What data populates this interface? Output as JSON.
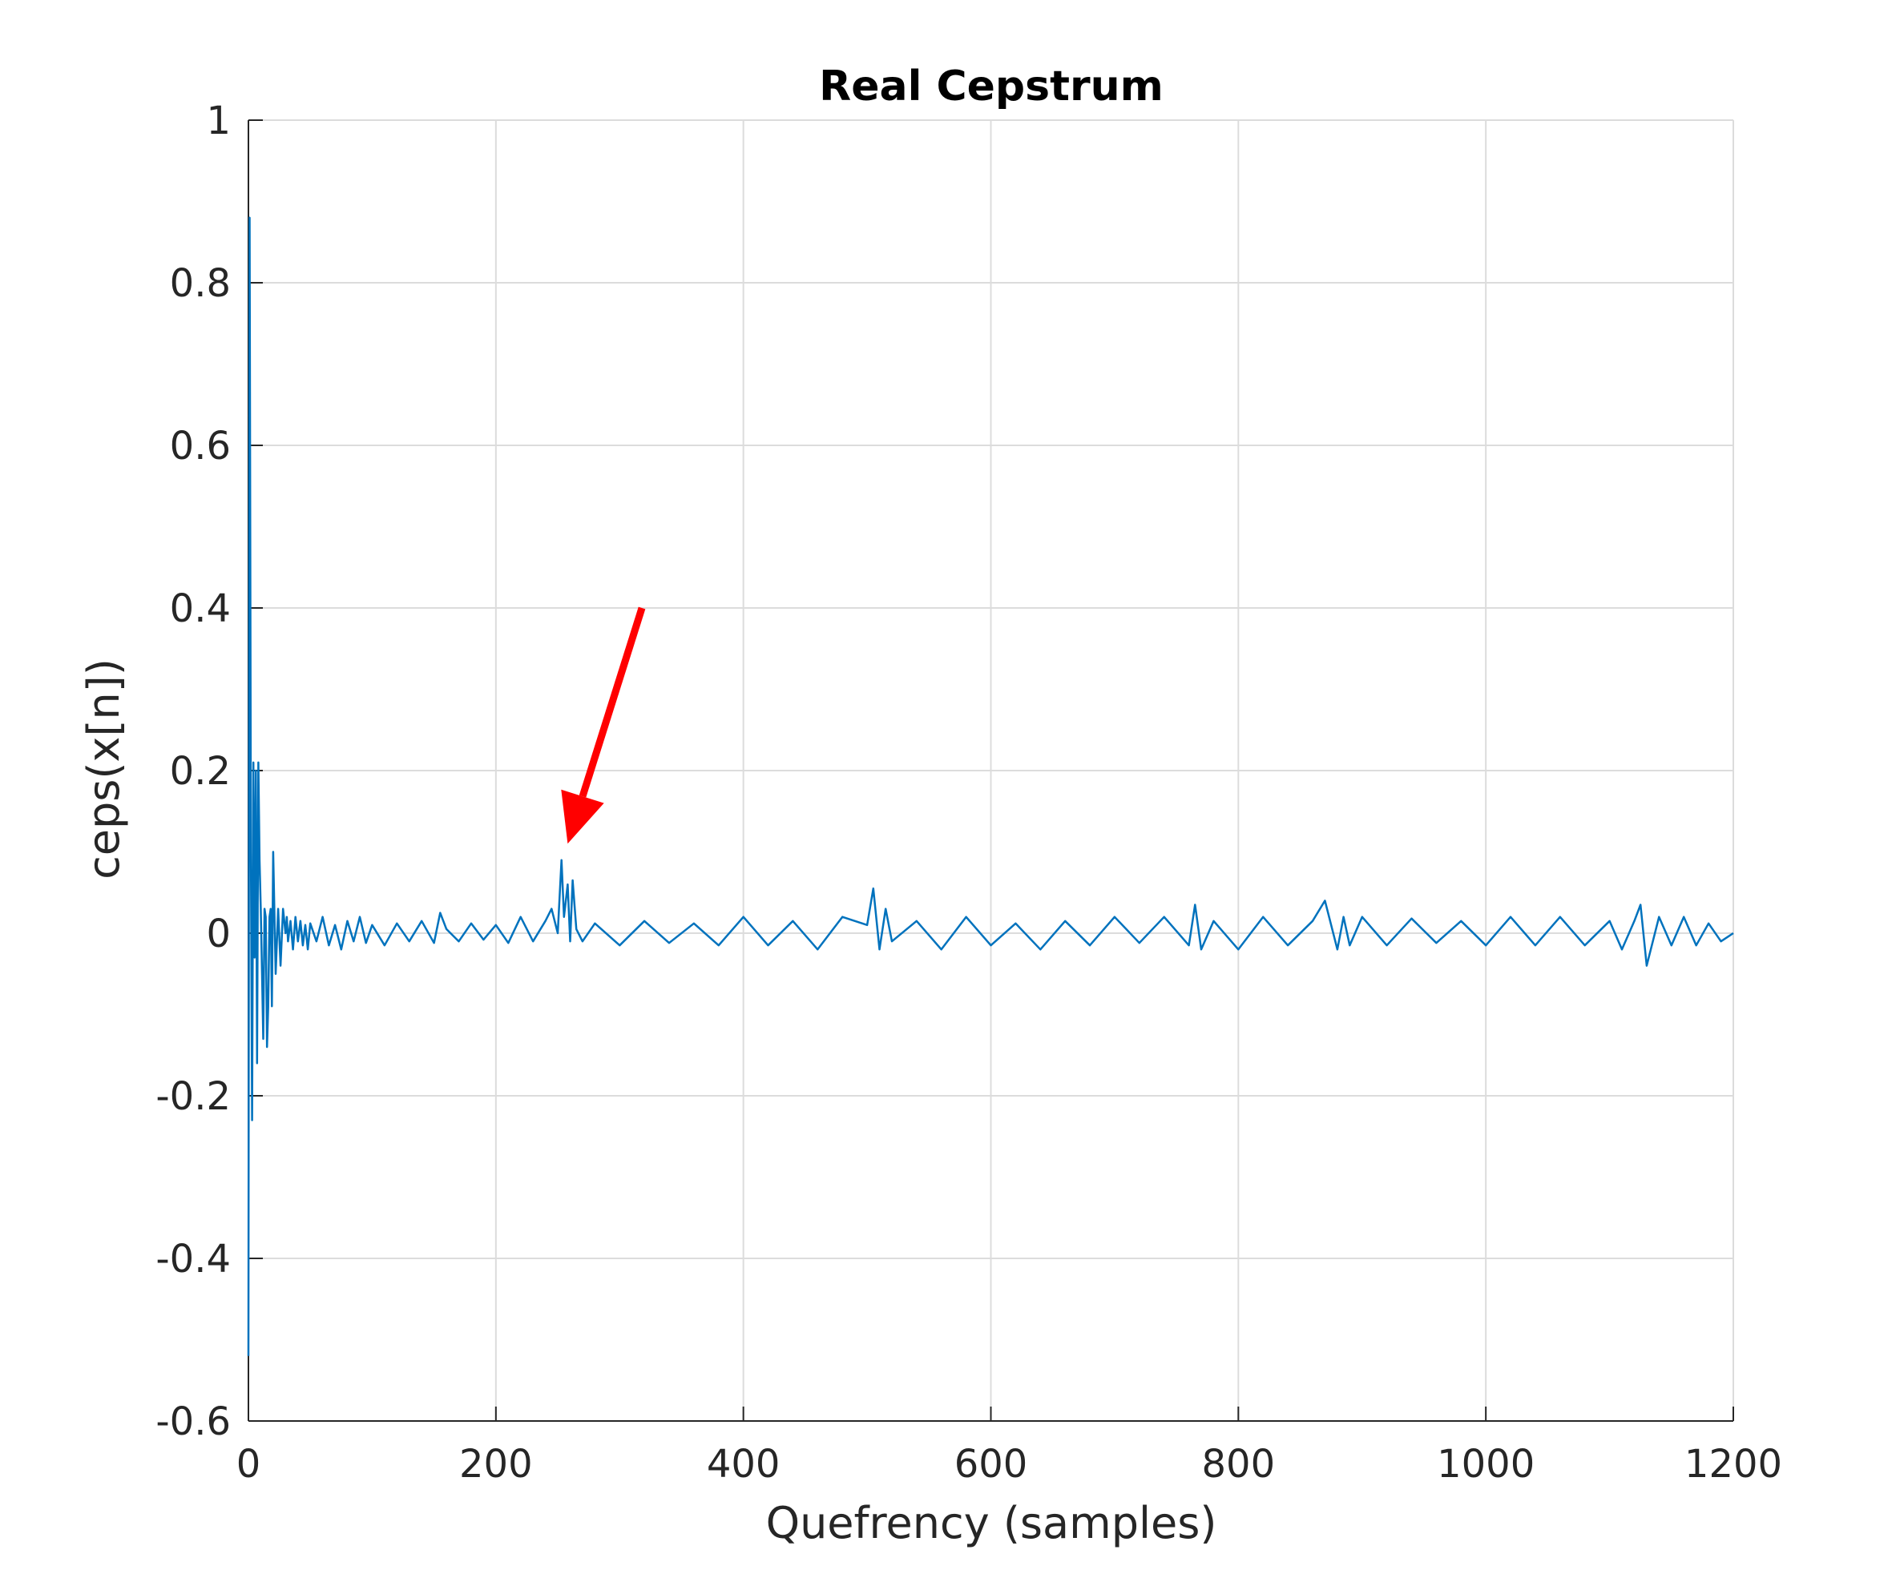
{
  "chart_data": {
    "type": "line",
    "title": "Real Cepstrum",
    "xlabel": "Quefrency (samples)",
    "ylabel": "ceps(x[n])",
    "xlim": [
      0,
      1200
    ],
    "ylim": [
      -0.6,
      1
    ],
    "x_ticks": [
      0,
      200,
      400,
      600,
      800,
      1000,
      1200
    ],
    "x_tick_labels": [
      "0",
      "200",
      "400",
      "600",
      "800",
      "1000",
      "1200"
    ],
    "y_ticks": [
      -0.6,
      -0.4,
      -0.2,
      0,
      0.2,
      0.4,
      0.6,
      0.8,
      1
    ],
    "y_tick_labels": [
      "-0.6",
      "-0.4",
      "-0.2",
      "0",
      "0.2",
      "0.4",
      "0.6",
      "0.8",
      "1"
    ],
    "grid": true,
    "series": [
      {
        "color": "#0072bd",
        "x": [
          0,
          1,
          2,
          3,
          4,
          5,
          6,
          7,
          8,
          9,
          10,
          11,
          12,
          13,
          14,
          15,
          16,
          17,
          18,
          19,
          20,
          22,
          24,
          26,
          28,
          30,
          31,
          32,
          34,
          36,
          38,
          40,
          42,
          44,
          46,
          48,
          50,
          55,
          60,
          65,
          70,
          75,
          80,
          85,
          90,
          95,
          100,
          110,
          120,
          130,
          140,
          150,
          155,
          160,
          170,
          180,
          190,
          200,
          210,
          220,
          230,
          240,
          245,
          250,
          253,
          255,
          258,
          260,
          262,
          265,
          270,
          280,
          300,
          320,
          340,
          360,
          380,
          400,
          420,
          440,
          460,
          480,
          500,
          505,
          510,
          515,
          520,
          540,
          560,
          580,
          600,
          620,
          640,
          660,
          680,
          700,
          720,
          740,
          760,
          765,
          770,
          780,
          800,
          820,
          840,
          860,
          870,
          880,
          885,
          890,
          900,
          920,
          940,
          960,
          980,
          1000,
          1020,
          1040,
          1060,
          1080,
          1100,
          1110,
          1120,
          1125,
          1130,
          1140,
          1150,
          1160,
          1170,
          1180,
          1190,
          1200
        ],
        "y": [
          -0.52,
          0.88,
          0.1,
          -0.23,
          0.21,
          -0.03,
          0.2,
          -0.16,
          0.21,
          0.09,
          0.03,
          -0.05,
          -0.13,
          0.03,
          0.02,
          -0.14,
          -0.09,
          0.02,
          0.03,
          -0.09,
          0.1,
          -0.05,
          0.03,
          -0.04,
          0.03,
          0.0,
          0.02,
          -0.01,
          0.015,
          -0.02,
          0.02,
          -0.01,
          0.015,
          -0.015,
          0.01,
          -0.02,
          0.012,
          -0.01,
          0.02,
          -0.015,
          0.01,
          -0.02,
          0.015,
          -0.01,
          0.02,
          -0.012,
          0.01,
          -0.015,
          0.012,
          -0.01,
          0.015,
          -0.012,
          0.025,
          0.005,
          -0.01,
          0.012,
          -0.008,
          0.01,
          -0.012,
          0.02,
          -0.01,
          0.015,
          0.03,
          0.0,
          0.09,
          0.02,
          0.06,
          -0.01,
          0.065,
          0.005,
          -0.01,
          0.012,
          -0.015,
          0.015,
          -0.012,
          0.012,
          -0.015,
          0.02,
          -0.015,
          0.015,
          -0.02,
          0.02,
          0.01,
          0.055,
          -0.02,
          0.03,
          -0.01,
          0.015,
          -0.02,
          0.02,
          -0.015,
          0.012,
          -0.02,
          0.015,
          -0.015,
          0.02,
          -0.012,
          0.02,
          -0.015,
          0.035,
          -0.02,
          0.015,
          -0.02,
          0.02,
          -0.015,
          0.015,
          0.04,
          -0.02,
          0.02,
          -0.015,
          0.02,
          -0.015,
          0.018,
          -0.012,
          0.015,
          -0.015,
          0.02,
          -0.015,
          0.02,
          -0.015,
          0.015,
          -0.02,
          0.015,
          0.035,
          -0.04,
          0.02,
          -0.015,
          0.02,
          -0.015,
          0.012,
          -0.01,
          0.0
        ]
      }
    ],
    "annotation": {
      "type": "arrow",
      "color": "#ff0000",
      "from": [
        318,
        0.4
      ],
      "to": [
        258,
        0.11
      ]
    }
  }
}
